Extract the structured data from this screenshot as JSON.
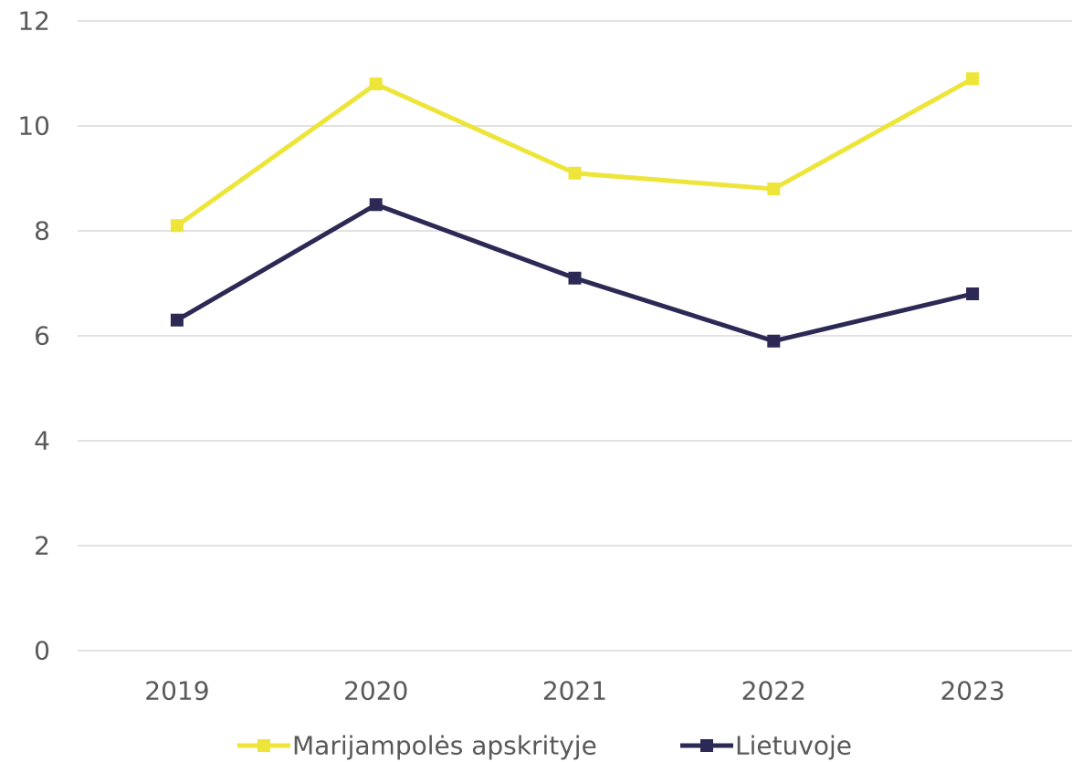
{
  "chart_data": {
    "type": "line",
    "title": "",
    "xlabel": "",
    "ylabel": "",
    "categories": [
      "2019",
      "2020",
      "2021",
      "2022",
      "2023"
    ],
    "ylim": [
      0,
      12
    ],
    "yticks": [
      "0",
      "2",
      "4",
      "6",
      "8",
      "10",
      "12"
    ],
    "grid": true,
    "legend_position": "bottom",
    "series": [
      {
        "name": "Marijampolės apskrityje",
        "color": "#ede53a",
        "marker": "square",
        "values": [
          8.1,
          10.8,
          9.1,
          8.8,
          10.9
        ]
      },
      {
        "name": "Lietuvoje",
        "color": "#2c2955",
        "marker": "square",
        "values": [
          6.3,
          8.5,
          7.1,
          5.9,
          6.8
        ]
      }
    ]
  }
}
